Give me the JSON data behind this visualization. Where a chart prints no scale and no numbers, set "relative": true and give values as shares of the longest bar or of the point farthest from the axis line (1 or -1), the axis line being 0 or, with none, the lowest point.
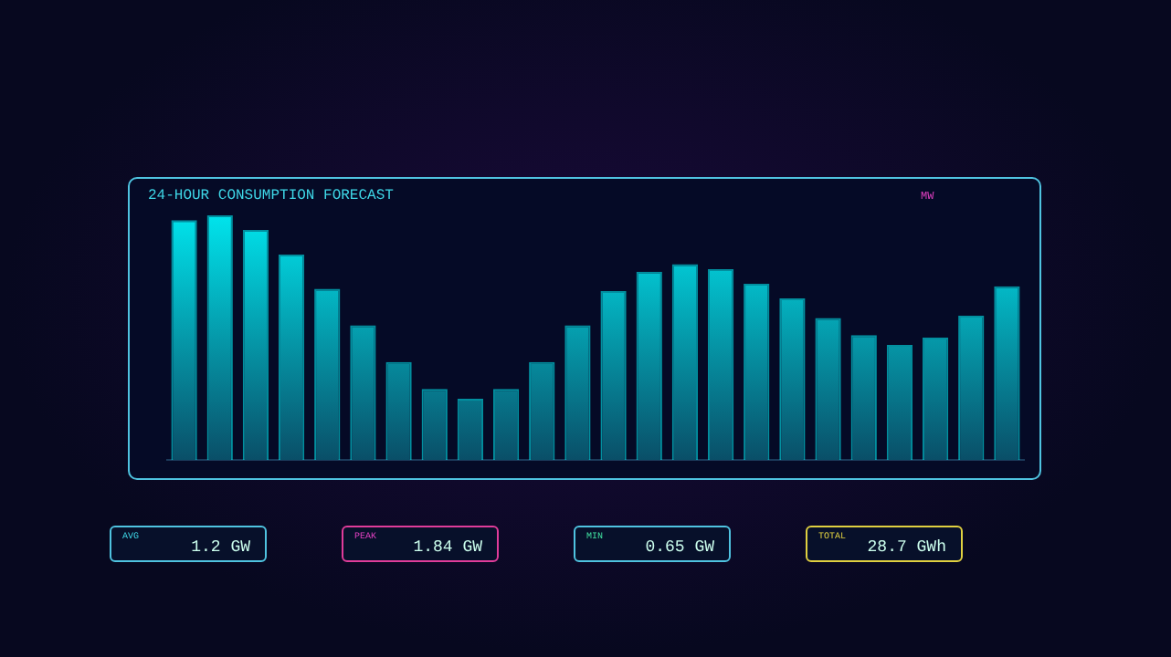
{
  "chart_data": [
    {
      "type": "bar",
      "title": "24-HOUR CONSUMPTION FORECAST",
      "relative": true,
      "color": "#00e8f0",
      "categories": [
        null,
        null,
        null,
        null,
        null,
        null,
        null,
        null,
        null,
        null,
        null,
        null,
        null,
        null,
        null,
        null,
        null,
        null,
        null,
        null,
        null,
        null,
        null,
        null
      ],
      "values": [
        0.98,
        1,
        0.94,
        0.84,
        0.7,
        0.55,
        0.4,
        0.29,
        0.25,
        0.29,
        0.4,
        0.55,
        0.69,
        0.77,
        0.8,
        0.78,
        0.72,
        0.66,
        0.58,
        0.51,
        0.47,
        0.5,
        0.59,
        0.71
      ],
      "annotations": [
        "MW"
      ]
    },
    {
      "type": "other",
      "annotations": [
        "AVG",
        "1.2 GW",
        "PEAK",
        "1.84 GW",
        "MIN",
        "0.65 GW",
        "TOTAL",
        "28.7 GWh"
      ]
    }
  ]
}
